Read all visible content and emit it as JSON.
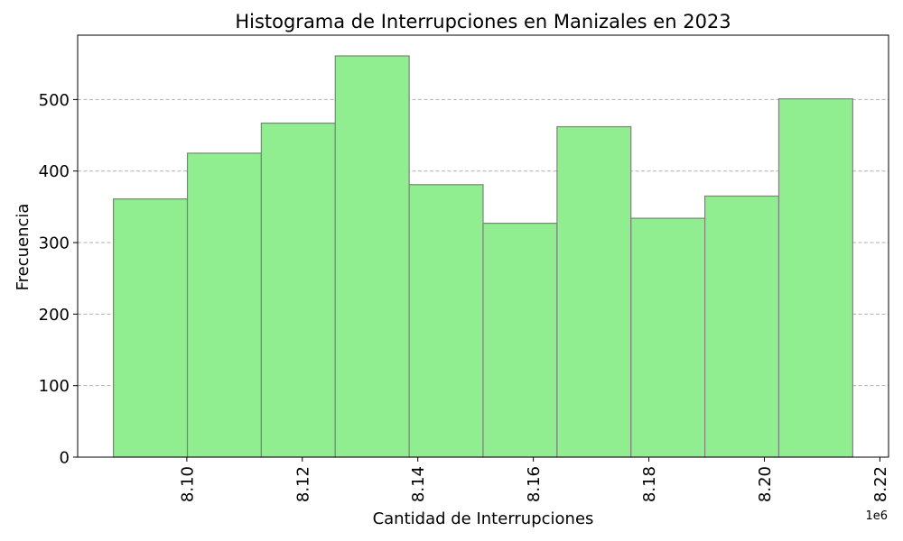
{
  "chart_data": {
    "type": "bar",
    "subtype": "histogram",
    "title": "Histograma de Interrupciones en Manizales en 2023",
    "xlabel": "Cantidad de Interrupciones",
    "ylabel": "Frecuencia",
    "x_offset_label": "1e6",
    "x_scale": 1000000,
    "bin_edges": [
      8.0873,
      8.1001,
      8.1129,
      8.1257,
      8.1385,
      8.1513,
      8.1641,
      8.1769,
      8.1897,
      8.2025,
      8.2153
    ],
    "values": [
      361,
      425,
      467,
      561,
      381,
      327,
      462,
      334,
      365,
      501
    ],
    "xlim": [
      8.0811,
      8.2215
    ],
    "ylim": [
      0,
      590
    ],
    "xticks": [
      8.1,
      8.12,
      8.14,
      8.16,
      8.18,
      8.2,
      8.22
    ],
    "xtick_labels": [
      "8.10",
      "8.12",
      "8.14",
      "8.16",
      "8.18",
      "8.20",
      "8.22"
    ],
    "yticks": [
      0,
      100,
      200,
      300,
      400,
      500
    ],
    "ytick_labels": [
      "0",
      "100",
      "200",
      "300",
      "400",
      "500"
    ],
    "grid": "y-dashed",
    "bar_color": "#90ee90",
    "edge_color": "#808080",
    "grid_color": "#b0b0b0"
  }
}
